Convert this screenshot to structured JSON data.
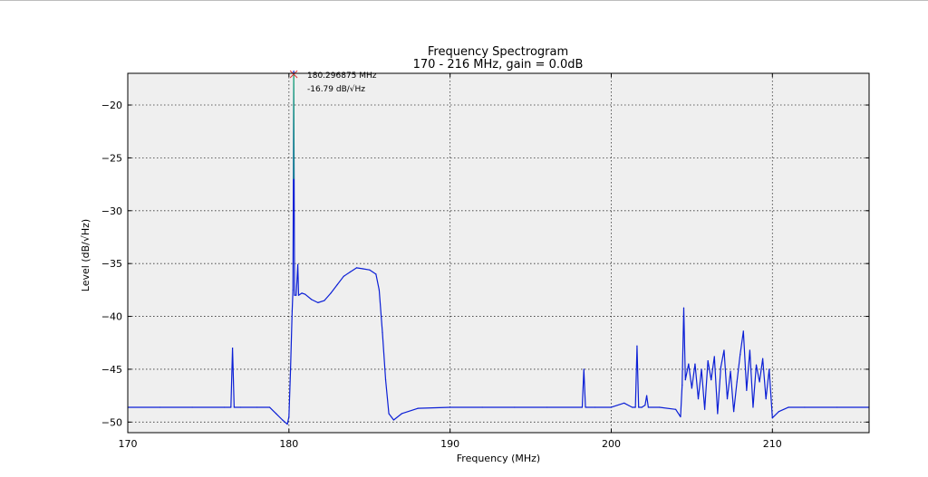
{
  "chart_data": {
    "type": "line",
    "title": "Frequency Spectrogram",
    "subtitle": "170 - 216 MHz, gain = 0.0dB",
    "xlabel": "Frequency (MHz)",
    "ylabel": "Level (dB/√Hz)",
    "xlim": [
      170,
      216
    ],
    "ylim": [
      -51,
      -17
    ],
    "xticks": [
      170,
      180,
      190,
      200,
      210
    ],
    "yticks": [
      -50,
      -45,
      -40,
      -35,
      -30,
      -25,
      -20
    ],
    "ytick_labels": [
      "−50",
      "−45",
      "−40",
      "−35",
      "−30",
      "−25",
      "−20"
    ],
    "grid": true,
    "background": "#efefef",
    "series": [
      {
        "color": "#0b1fd6",
        "x": [
          170,
          172,
          174,
          176,
          176.4,
          176.5,
          176.6,
          177,
          178,
          178.8,
          179.2,
          179.6,
          179.9,
          180.0,
          180.1,
          180.2,
          180.25,
          180.297,
          180.35,
          180.45,
          180.55,
          180.6,
          180.8,
          181.0,
          181.4,
          181.8,
          182.2,
          182.6,
          183.0,
          183.4,
          183.8,
          184.2,
          184.6,
          185.0,
          185.4,
          185.6,
          185.8,
          186.0,
          186.2,
          186.5,
          187,
          188,
          190,
          192,
          194,
          196,
          198.2,
          198.3,
          198.4,
          199,
          200,
          200.8,
          201.3,
          201.5,
          201.6,
          201.7,
          201.9,
          202.1,
          202.2,
          202.3,
          203,
          204.0,
          204.3,
          204.4,
          204.5,
          204.6,
          204.8,
          205.0,
          205.2,
          205.4,
          205.6,
          205.8,
          206.0,
          206.2,
          206.4,
          206.6,
          206.8,
          207.0,
          207.2,
          207.4,
          207.6,
          207.8,
          208.0,
          208.2,
          208.4,
          208.6,
          208.8,
          209.0,
          209.2,
          209.4,
          209.6,
          209.8,
          210.0,
          210.4,
          211,
          212,
          214,
          216
        ],
        "y": [
          -48.6,
          -48.6,
          -48.6,
          -48.6,
          -48.6,
          -43.0,
          -48.6,
          -48.6,
          -48.6,
          -48.6,
          -49.2,
          -49.8,
          -50.2,
          -49.5,
          -45.0,
          -39.5,
          -37.5,
          -16.79,
          -38.0,
          -38.0,
          -35.1,
          -38.0,
          -37.8,
          -37.9,
          -38.4,
          -38.7,
          -38.5,
          -37.8,
          -37.0,
          -36.2,
          -35.8,
          -35.4,
          -35.5,
          -35.6,
          -36.0,
          -37.5,
          -41.5,
          -46.0,
          -49.2,
          -49.8,
          -49.2,
          -48.7,
          -48.6,
          -48.6,
          -48.6,
          -48.6,
          -48.6,
          -45.0,
          -48.6,
          -48.6,
          -48.6,
          -48.2,
          -48.6,
          -48.6,
          -42.8,
          -48.6,
          -48.6,
          -48.4,
          -47.5,
          -48.6,
          -48.6,
          -48.8,
          -49.5,
          -46.5,
          -39.2,
          -46.0,
          -44.5,
          -46.8,
          -44.5,
          -47.8,
          -45.0,
          -48.8,
          -44.2,
          -46.0,
          -43.8,
          -49.2,
          -44.8,
          -43.2,
          -47.8,
          -45.2,
          -49.0,
          -46.2,
          -43.6,
          -41.4,
          -47.0,
          -43.2,
          -48.6,
          -44.6,
          -46.2,
          -44.0,
          -47.8,
          -45.0,
          -49.6,
          -49.0,
          -48.6,
          -48.6,
          -48.6,
          -48.6
        ]
      }
    ],
    "annotations": [
      {
        "text": "180.296875 MHz",
        "x": 180.296875,
        "y": -16.79
      },
      {
        "text": "-16.79 dB/√Hz",
        "x": 180.296875,
        "y": -16.79
      }
    ],
    "marker_color": "#19c95a"
  }
}
